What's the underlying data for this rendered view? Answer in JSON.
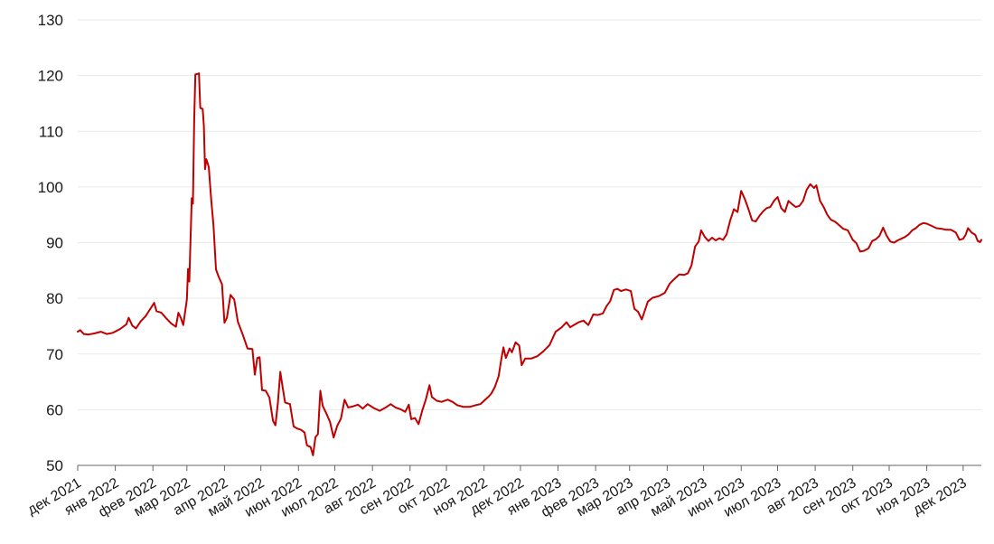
{
  "chart_data": {
    "type": "line",
    "title": "",
    "xlabel": "",
    "ylabel": "",
    "ylim": [
      50,
      130
    ],
    "yticks": [
      50,
      60,
      70,
      80,
      90,
      100,
      110,
      120,
      130
    ],
    "grid": true,
    "line_color": "#c00000",
    "x_tick_labels": [
      "дек 2021",
      "янв 2022",
      "фев 2022",
      "мар 2022",
      "апр 2022",
      "май 2022",
      "июн 2022",
      "июл 2022",
      "авг 2022",
      "сен 2022",
      "окт 2022",
      "ноя 2022",
      "дек 2022",
      "янв 2023",
      "фев 2023",
      "мар 2023",
      "апр 2023",
      "май 2023",
      "июн 2023",
      "июл 2023",
      "авг 2023",
      "сен 2023",
      "окт 2023",
      "ноя 2023",
      "дек 2023"
    ],
    "x_ticks": [
      "2021-12-01",
      "2022-01-01",
      "2022-02-01",
      "2022-03-01",
      "2022-04-01",
      "2022-05-01",
      "2022-06-01",
      "2022-07-01",
      "2022-08-01",
      "2022-09-01",
      "2022-10-01",
      "2022-11-01",
      "2022-12-01",
      "2023-01-01",
      "2023-02-01",
      "2023-03-01",
      "2023-04-01",
      "2023-05-01",
      "2023-06-01",
      "2023-07-01",
      "2023-08-01",
      "2023-09-01",
      "2023-10-01",
      "2023-11-01",
      "2023-12-01"
    ],
    "xlim": [
      "2021-12-01",
      "2023-12-16"
    ],
    "series": [
      {
        "values": [
          [
            "2021-12-01",
            74.0
          ],
          [
            "2021-12-03",
            74.3
          ],
          [
            "2021-12-06",
            73.6
          ],
          [
            "2021-12-10",
            73.5
          ],
          [
            "2021-12-15",
            73.7
          ],
          [
            "2021-12-20",
            74.0
          ],
          [
            "2021-12-25",
            73.6
          ],
          [
            "2021-12-30",
            73.8
          ],
          [
            "2022-01-05",
            74.5
          ],
          [
            "2022-01-10",
            75.3
          ],
          [
            "2022-01-12",
            76.5
          ],
          [
            "2022-01-15",
            75.1
          ],
          [
            "2022-01-18",
            74.6
          ],
          [
            "2022-01-22",
            75.9
          ],
          [
            "2022-01-26",
            76.8
          ],
          [
            "2022-01-28",
            77.5
          ],
          [
            "2022-01-31",
            78.5
          ],
          [
            "2022-02-02",
            79.2
          ],
          [
            "2022-02-04",
            77.7
          ],
          [
            "2022-02-08",
            77.4
          ],
          [
            "2022-02-12",
            76.4
          ],
          [
            "2022-02-16",
            75.5
          ],
          [
            "2022-02-20",
            74.9
          ],
          [
            "2022-02-22",
            77.4
          ],
          [
            "2022-02-24",
            76.5
          ],
          [
            "2022-02-26",
            75.2
          ],
          [
            "2022-03-01",
            79.8
          ],
          [
            "2022-03-02",
            85.3
          ],
          [
            "2022-03-03",
            83.0
          ],
          [
            "2022-03-05",
            98.0
          ],
          [
            "2022-03-06",
            97.0
          ],
          [
            "2022-03-07",
            112.0
          ],
          [
            "2022-03-08",
            120.2
          ],
          [
            "2022-03-10",
            120.3
          ],
          [
            "2022-03-11",
            120.4
          ],
          [
            "2022-03-12",
            114.2
          ],
          [
            "2022-03-14",
            114.0
          ],
          [
            "2022-03-15",
            111.0
          ],
          [
            "2022-03-16",
            103.2
          ],
          [
            "2022-03-17",
            105.0
          ],
          [
            "2022-03-19",
            103.6
          ],
          [
            "2022-03-21",
            97.8
          ],
          [
            "2022-03-23",
            93.0
          ],
          [
            "2022-03-25",
            85.2
          ],
          [
            "2022-03-27",
            84.0
          ],
          [
            "2022-03-30",
            82.5
          ],
          [
            "2022-04-01",
            75.6
          ],
          [
            "2022-04-03",
            76.5
          ],
          [
            "2022-04-06",
            80.6
          ],
          [
            "2022-04-09",
            79.8
          ],
          [
            "2022-04-12",
            75.8
          ],
          [
            "2022-04-16",
            73.5
          ],
          [
            "2022-04-20",
            71.0
          ],
          [
            "2022-04-24",
            70.9
          ],
          [
            "2022-04-26",
            66.3
          ],
          [
            "2022-04-28",
            69.3
          ],
          [
            "2022-04-30",
            69.4
          ],
          [
            "2022-05-02",
            63.5
          ],
          [
            "2022-05-05",
            63.4
          ],
          [
            "2022-05-08",
            62.2
          ],
          [
            "2022-05-11",
            58.0
          ],
          [
            "2022-05-13",
            57.2
          ],
          [
            "2022-05-15",
            61.2
          ],
          [
            "2022-05-17",
            66.8
          ],
          [
            "2022-05-19",
            64.0
          ],
          [
            "2022-05-21",
            61.3
          ],
          [
            "2022-05-25",
            61.0
          ],
          [
            "2022-05-28",
            57.0
          ],
          [
            "2022-05-31",
            56.6
          ],
          [
            "2022-06-03",
            56.4
          ],
          [
            "2022-06-06",
            55.9
          ],
          [
            "2022-06-08",
            53.6
          ],
          [
            "2022-06-11",
            53.3
          ],
          [
            "2022-06-13",
            51.8
          ],
          [
            "2022-06-15",
            55.1
          ],
          [
            "2022-06-17",
            55.6
          ],
          [
            "2022-06-19",
            63.4
          ],
          [
            "2022-06-21",
            60.7
          ],
          [
            "2022-06-24",
            59.3
          ],
          [
            "2022-06-27",
            57.8
          ],
          [
            "2022-06-30",
            55.0
          ],
          [
            "2022-07-03",
            57.1
          ],
          [
            "2022-07-06",
            58.4
          ],
          [
            "2022-07-09",
            61.8
          ],
          [
            "2022-07-12",
            60.4
          ],
          [
            "2022-07-16",
            60.6
          ],
          [
            "2022-07-20",
            60.9
          ],
          [
            "2022-07-24",
            60.2
          ],
          [
            "2022-07-28",
            61.0
          ],
          [
            "2022-08-02",
            60.3
          ],
          [
            "2022-08-07",
            59.8
          ],
          [
            "2022-08-12",
            60.4
          ],
          [
            "2022-08-16",
            61.0
          ],
          [
            "2022-08-20",
            60.4
          ],
          [
            "2022-08-24",
            60.1
          ],
          [
            "2022-08-28",
            59.6
          ],
          [
            "2022-08-31",
            60.9
          ],
          [
            "2022-09-02",
            58.3
          ],
          [
            "2022-09-05",
            58.5
          ],
          [
            "2022-09-08",
            57.4
          ],
          [
            "2022-09-11",
            59.8
          ],
          [
            "2022-09-14",
            61.8
          ],
          [
            "2022-09-17",
            64.4
          ],
          [
            "2022-09-19",
            62.3
          ],
          [
            "2022-09-23",
            61.6
          ],
          [
            "2022-09-27",
            61.4
          ],
          [
            "2022-10-02",
            61.8
          ],
          [
            "2022-10-06",
            61.4
          ],
          [
            "2022-10-10",
            60.8
          ],
          [
            "2022-10-15",
            60.5
          ],
          [
            "2022-10-20",
            60.5
          ],
          [
            "2022-10-25",
            60.8
          ],
          [
            "2022-10-29",
            61.0
          ],
          [
            "2022-11-02",
            61.8
          ],
          [
            "2022-11-05",
            62.4
          ],
          [
            "2022-11-07",
            62.9
          ],
          [
            "2022-11-10",
            64.1
          ],
          [
            "2022-11-13",
            66.0
          ],
          [
            "2022-11-15",
            68.8
          ],
          [
            "2022-11-17",
            71.2
          ],
          [
            "2022-11-19",
            69.3
          ],
          [
            "2022-11-22",
            71.0
          ],
          [
            "2022-11-24",
            70.3
          ],
          [
            "2022-11-27",
            72.1
          ],
          [
            "2022-11-30",
            71.5
          ],
          [
            "2022-12-02",
            68.0
          ],
          [
            "2022-12-05",
            69.2
          ],
          [
            "2022-12-10",
            69.2
          ],
          [
            "2022-12-15",
            69.6
          ],
          [
            "2022-12-20",
            70.5
          ],
          [
            "2022-12-25",
            71.6
          ],
          [
            "2022-12-30",
            74.0
          ],
          [
            "2023-01-04",
            74.8
          ],
          [
            "2023-01-08",
            75.7
          ],
          [
            "2023-01-11",
            74.8
          ],
          [
            "2023-01-14",
            75.2
          ],
          [
            "2023-01-18",
            75.7
          ],
          [
            "2023-01-22",
            76.0
          ],
          [
            "2023-01-26",
            75.2
          ],
          [
            "2023-01-30",
            77.1
          ],
          [
            "2023-02-03",
            77.0
          ],
          [
            "2023-02-07",
            77.3
          ],
          [
            "2023-02-10",
            78.6
          ],
          [
            "2023-02-13",
            79.5
          ],
          [
            "2023-02-16",
            81.5
          ],
          [
            "2023-02-19",
            81.7
          ],
          [
            "2023-02-22",
            81.3
          ],
          [
            "2023-02-26",
            81.6
          ],
          [
            "2023-03-02",
            81.3
          ],
          [
            "2023-03-05",
            78.1
          ],
          [
            "2023-03-08",
            77.6
          ],
          [
            "2023-03-11",
            76.2
          ],
          [
            "2023-03-13",
            77.4
          ],
          [
            "2023-03-16",
            79.4
          ],
          [
            "2023-03-20",
            80.1
          ],
          [
            "2023-03-25",
            80.4
          ],
          [
            "2023-03-30",
            81.0
          ],
          [
            "2023-04-03",
            82.6
          ],
          [
            "2023-04-07",
            83.5
          ],
          [
            "2023-04-11",
            84.3
          ],
          [
            "2023-04-15",
            84.2
          ],
          [
            "2023-04-18",
            84.5
          ],
          [
            "2023-04-21",
            85.9
          ],
          [
            "2023-04-24",
            89.3
          ],
          [
            "2023-04-27",
            90.2
          ],
          [
            "2023-04-29",
            92.2
          ],
          [
            "2023-05-02",
            91.0
          ],
          [
            "2023-05-05",
            90.3
          ],
          [
            "2023-05-08",
            90.9
          ],
          [
            "2023-05-11",
            90.4
          ],
          [
            "2023-05-14",
            90.8
          ],
          [
            "2023-05-17",
            90.5
          ],
          [
            "2023-05-20",
            91.5
          ],
          [
            "2023-05-23",
            94.0
          ],
          [
            "2023-05-26",
            96.0
          ],
          [
            "2023-05-29",
            95.5
          ],
          [
            "2023-06-01",
            99.3
          ],
          [
            "2023-06-04",
            97.8
          ],
          [
            "2023-06-07",
            96.0
          ],
          [
            "2023-06-10",
            94.0
          ],
          [
            "2023-06-13",
            93.8
          ],
          [
            "2023-06-16",
            94.8
          ],
          [
            "2023-06-19",
            95.6
          ],
          [
            "2023-06-22",
            96.2
          ],
          [
            "2023-06-25",
            96.4
          ],
          [
            "2023-06-28",
            97.5
          ],
          [
            "2023-07-01",
            98.2
          ],
          [
            "2023-07-04",
            96.2
          ],
          [
            "2023-07-07",
            95.5
          ],
          [
            "2023-07-10",
            97.5
          ],
          [
            "2023-07-13",
            96.9
          ],
          [
            "2023-07-16",
            96.4
          ],
          [
            "2023-07-19",
            96.6
          ],
          [
            "2023-07-22",
            97.5
          ],
          [
            "2023-07-25",
            99.5
          ],
          [
            "2023-07-28",
            100.5
          ],
          [
            "2023-07-31",
            99.8
          ],
          [
            "2023-08-02",
            100.3
          ],
          [
            "2023-08-05",
            97.5
          ],
          [
            "2023-08-08",
            96.4
          ],
          [
            "2023-08-11",
            95.0
          ],
          [
            "2023-08-14",
            94.1
          ],
          [
            "2023-08-17",
            93.8
          ],
          [
            "2023-08-20",
            93.3
          ],
          [
            "2023-08-24",
            92.5
          ],
          [
            "2023-08-28",
            92.2
          ],
          [
            "2023-09-01",
            90.5
          ],
          [
            "2023-09-04",
            89.9
          ],
          [
            "2023-09-07",
            88.4
          ],
          [
            "2023-09-10",
            88.5
          ],
          [
            "2023-09-14",
            89.0
          ],
          [
            "2023-09-17",
            90.3
          ],
          [
            "2023-09-20",
            90.6
          ],
          [
            "2023-09-23",
            91.2
          ],
          [
            "2023-09-26",
            92.7
          ],
          [
            "2023-09-29",
            91.2
          ],
          [
            "2023-10-02",
            90.2
          ],
          [
            "2023-10-05",
            90.0
          ],
          [
            "2023-10-08",
            90.4
          ],
          [
            "2023-10-11",
            90.7
          ],
          [
            "2023-10-14",
            91.0
          ],
          [
            "2023-10-17",
            91.5
          ],
          [
            "2023-10-20",
            92.2
          ],
          [
            "2023-10-23",
            92.6
          ],
          [
            "2023-10-26",
            93.2
          ],
          [
            "2023-10-29",
            93.5
          ],
          [
            "2023-11-01",
            93.4
          ],
          [
            "2023-11-05",
            93.0
          ],
          [
            "2023-11-09",
            92.6
          ],
          [
            "2023-11-13",
            92.5
          ],
          [
            "2023-11-17",
            92.3
          ],
          [
            "2023-11-21",
            92.3
          ],
          [
            "2023-11-25",
            91.8
          ],
          [
            "2023-11-28",
            90.5
          ],
          [
            "2023-12-01",
            90.7
          ],
          [
            "2023-12-03",
            91.4
          ],
          [
            "2023-12-05",
            92.6
          ],
          [
            "2023-12-08",
            91.8
          ],
          [
            "2023-12-11",
            91.4
          ],
          [
            "2023-12-13",
            90.3
          ],
          [
            "2023-12-15",
            90.1
          ],
          [
            "2023-12-16",
            90.5
          ]
        ]
      }
    ]
  }
}
